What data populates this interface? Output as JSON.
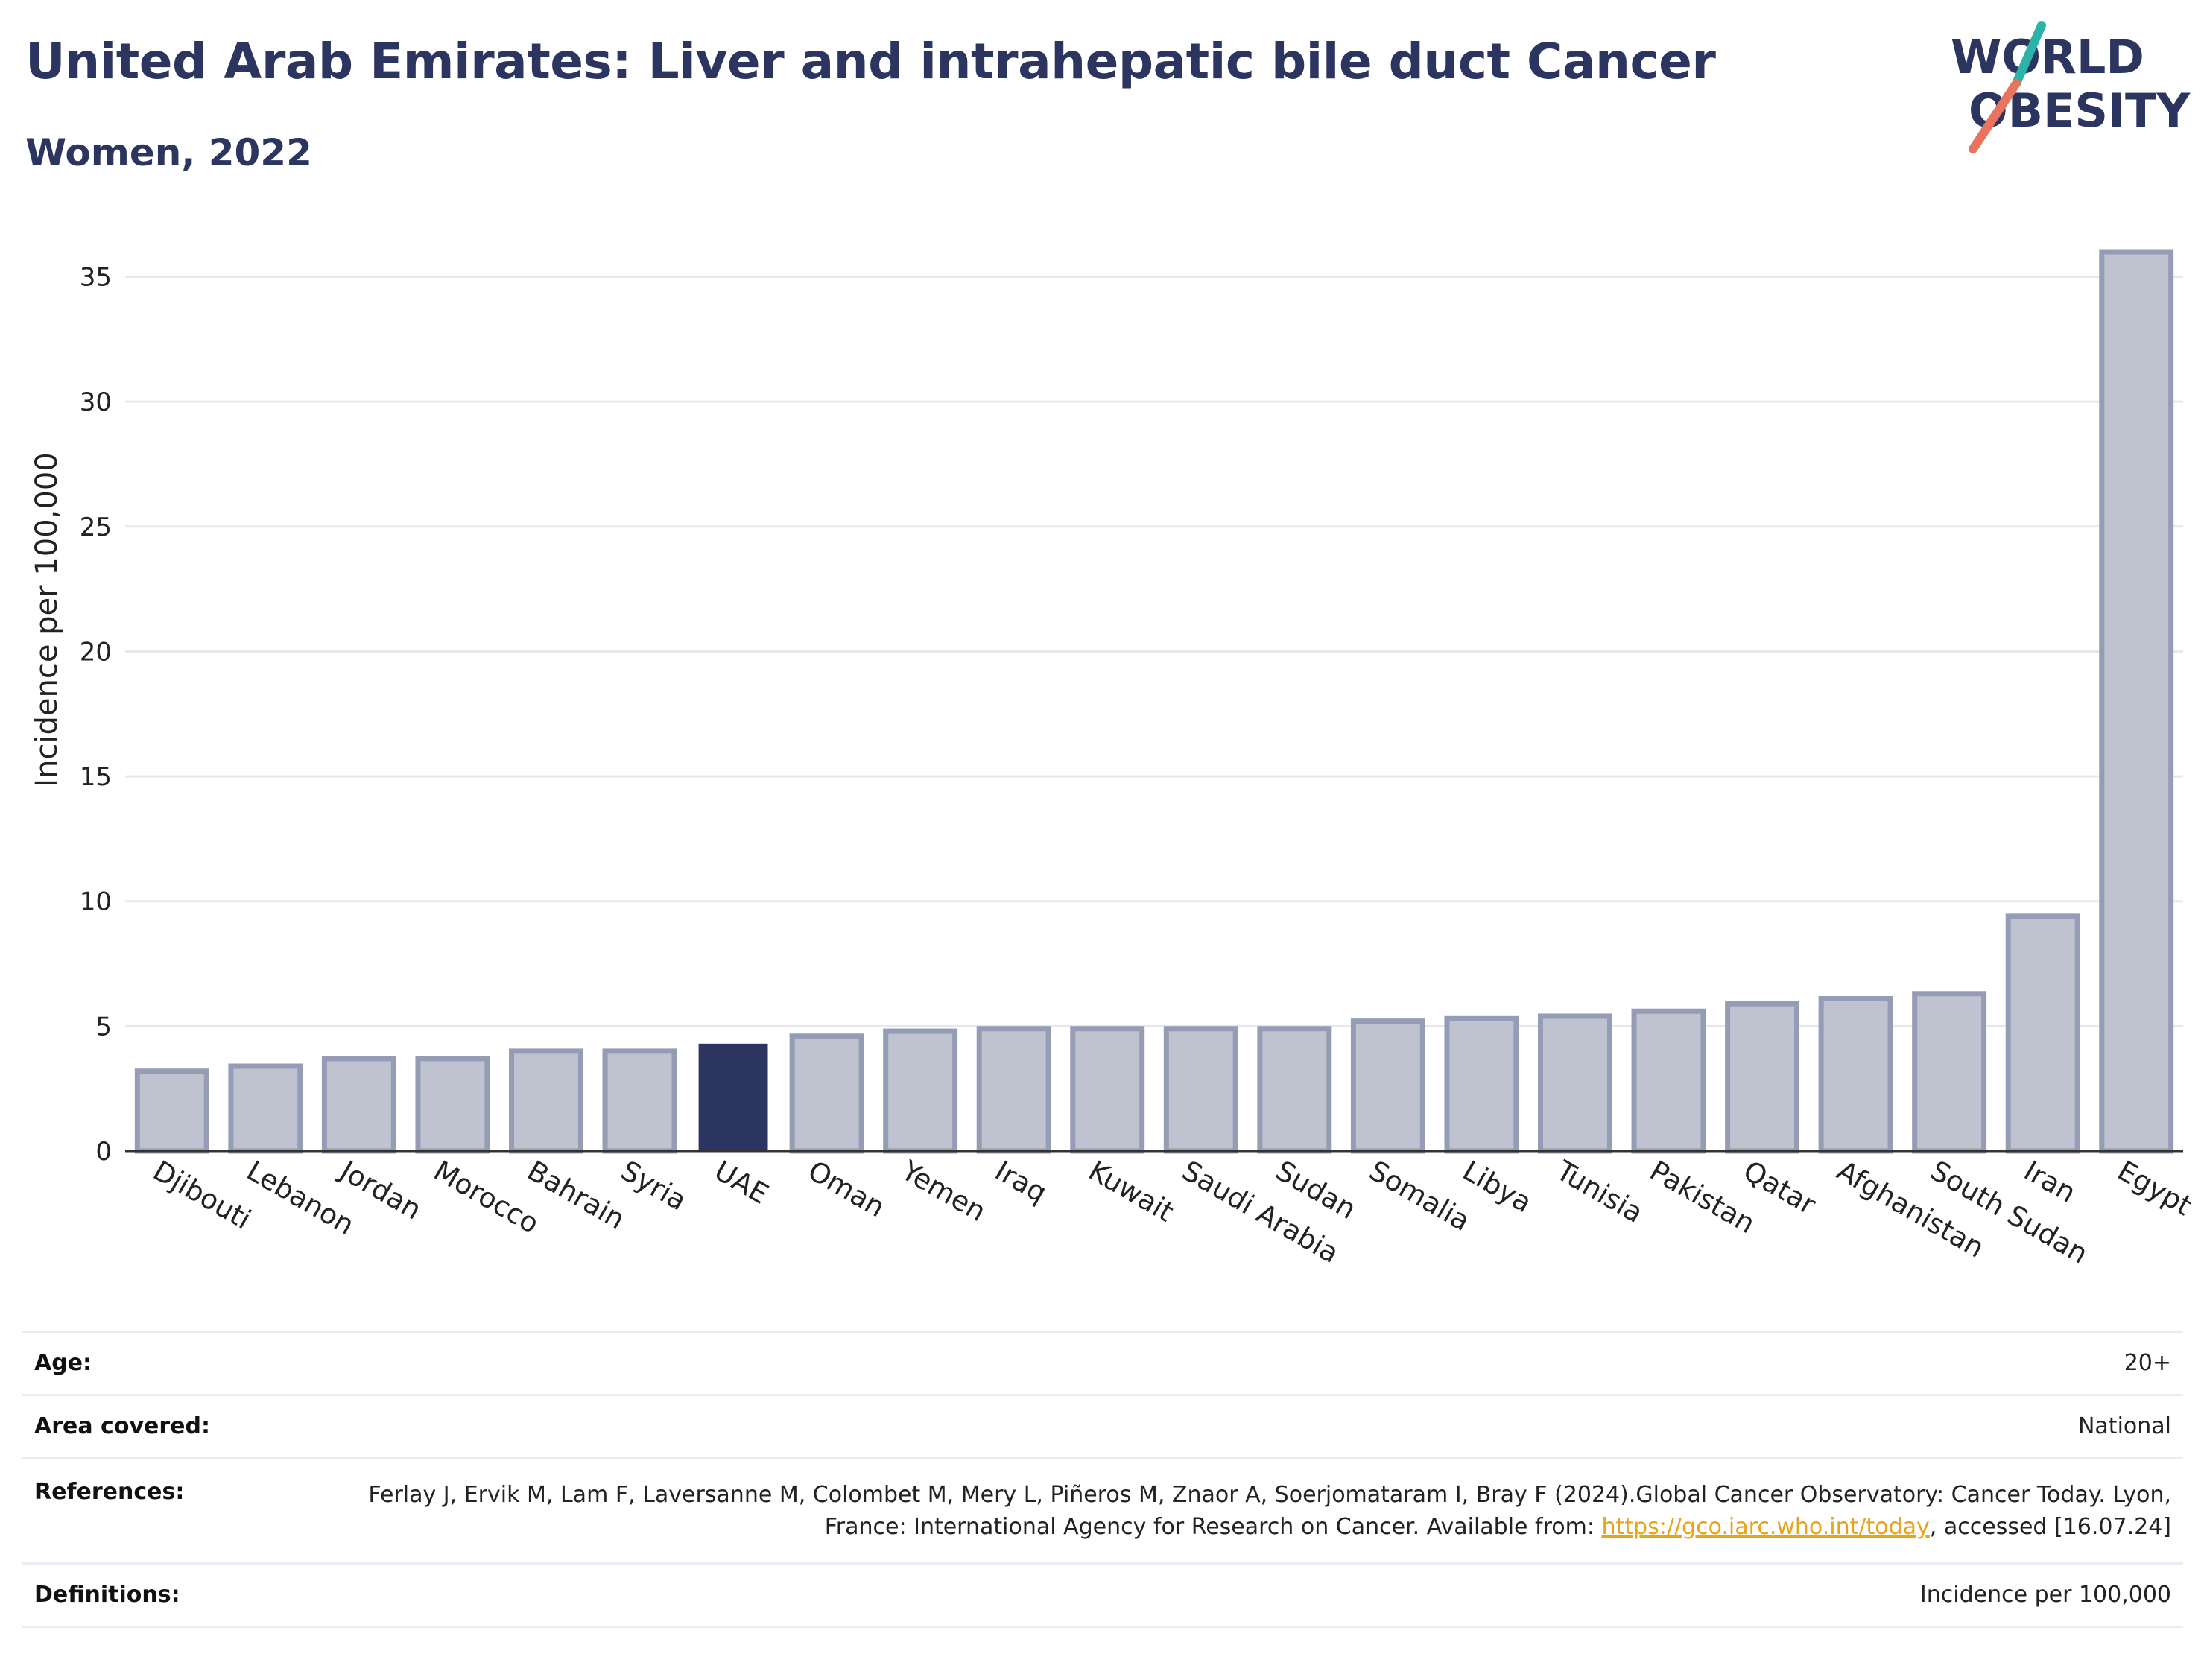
{
  "header": {
    "title": "United Arab Emirates: Liver and intrahepatic bile duct Cancer",
    "subtitle": "Women, 2022"
  },
  "logo": {
    "line1": "WORLD",
    "line2": "OBESITY",
    "accent_teal": "#2bb3a8",
    "accent_coral": "#e8735f",
    "text_color": "#2b3560"
  },
  "colors": {
    "bar_fill": "#bfc3d0",
    "bar_stroke": "#959cb5",
    "highlight": "#2b3560",
    "grid": "#e6e8ee"
  },
  "chart_data": {
    "type": "bar",
    "categories": [
      "Djibouti",
      "Lebanon",
      "Jordan",
      "Morocco",
      "Bahrain",
      "Syria",
      "UAE",
      "Oman",
      "Yemen",
      "Iraq",
      "Kuwait",
      "Saudi Arabia",
      "Sudan",
      "Somalia",
      "Libya",
      "Tunisia",
      "Pakistan",
      "Qatar",
      "Afghanistan",
      "South Sudan",
      "Iran",
      "Egypt"
    ],
    "values": [
      3.2,
      3.4,
      3.7,
      3.7,
      4.0,
      4.0,
      4.3,
      4.6,
      4.8,
      4.9,
      4.9,
      4.9,
      4.9,
      5.2,
      5.3,
      5.4,
      5.6,
      5.9,
      6.1,
      6.3,
      9.4,
      36.0
    ],
    "highlight": "UAE",
    "ylabel": "Incidence per 100,000",
    "xlabel": "",
    "ylim": [
      0,
      36
    ],
    "yticks": [
      "0",
      "5",
      "10",
      "15",
      "20",
      "25",
      "30",
      "35"
    ],
    "grid": true
  },
  "info": {
    "age": {
      "label": "Age:",
      "value": "20+"
    },
    "area": {
      "label": "Area covered:",
      "value": "National"
    },
    "references": {
      "label": "References:",
      "text_before": "Ferlay J, Ervik M, Lam F, Laversanne M, Colombet M, Mery L, Piñeros M, Znaor A, Soerjomataram I, Bray F (2024).Global Cancer Observatory: Cancer Today. Lyon, France: International Agency for Research on Cancer. Available from: ",
      "link": "https://gco.iarc.who.int/today",
      "text_after": ", accessed [16.07.24]"
    },
    "definitions": {
      "label": "Definitions:",
      "value": "Incidence per 100,000"
    }
  }
}
